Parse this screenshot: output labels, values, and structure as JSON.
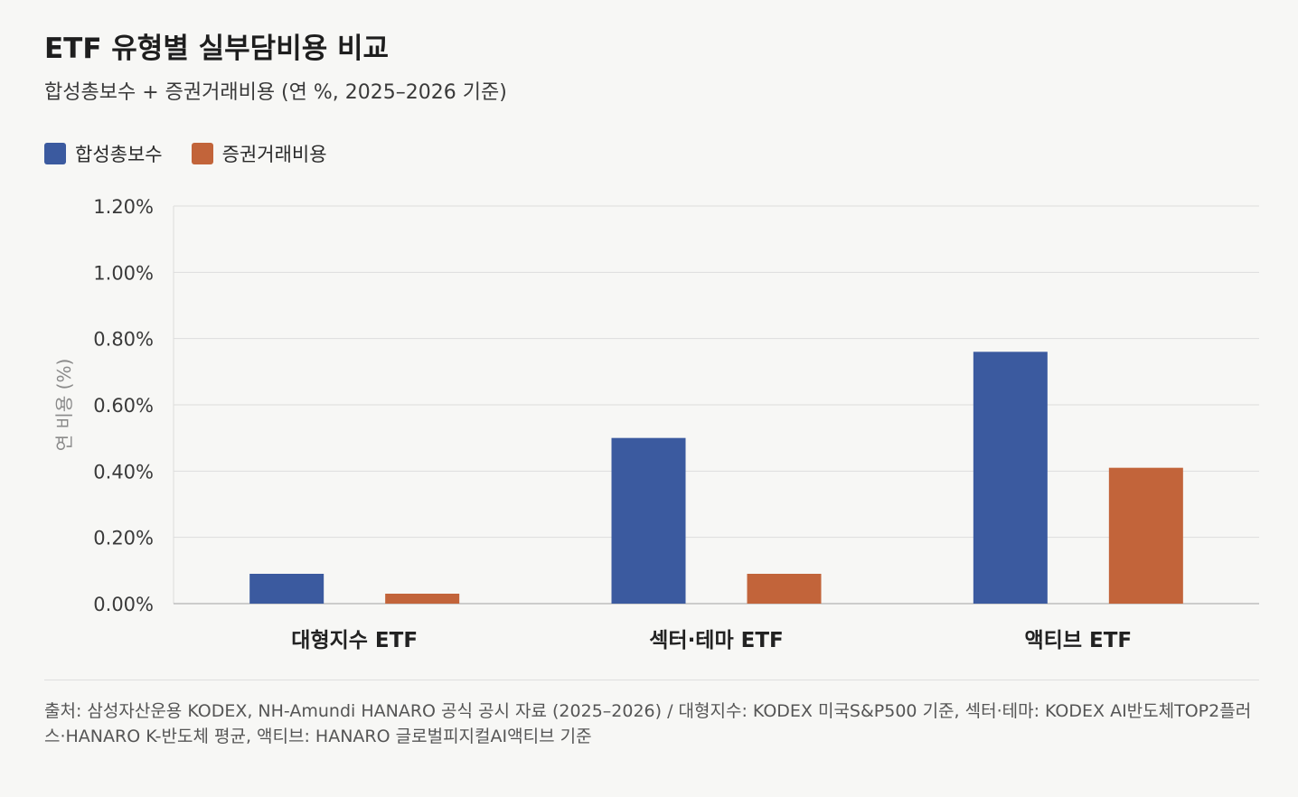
{
  "title": "ETF 유형별 실부담비용 비교",
  "subtitle": "합성총보수 + 증권거래비용 (연 %, 2025–2026 기준)",
  "source": "출처: 삼성자산운용 KODEX, NH-Amundi HANARO 공식 공시 자료 (2025–2026) / 대형지수: KODEX 미국S&P500 기준, 섹터·테마: KODEX AI반도체TOP2플러스·HANARO K-반도체 평균, 액티브: HANARO 글로벌피지컬AI액티브 기준",
  "colors": {
    "series1": "#3b5a9f",
    "series2": "#c2643a",
    "grid": "#dcdcdc",
    "axis": "#bdbdbd"
  },
  "chart_data": {
    "type": "bar",
    "ylabel": "연 비용 (%)",
    "ylim": [
      0,
      1.2
    ],
    "yticks": [
      0,
      0.2,
      0.4,
      0.6,
      0.8,
      1.0,
      1.2
    ],
    "ytick_labels": [
      "0.00%",
      "0.20%",
      "0.40%",
      "0.60%",
      "0.80%",
      "1.00%",
      "1.20%"
    ],
    "categories": [
      "대형지수 ETF",
      "섹터·테마 ETF",
      "액티브 ETF"
    ],
    "series": [
      {
        "name": "합성총보수",
        "values": [
          0.09,
          0.5,
          0.76
        ]
      },
      {
        "name": "증권거래비용",
        "values": [
          0.03,
          0.09,
          0.41
        ]
      }
    ],
    "grid": true,
    "legend": "top-left"
  }
}
